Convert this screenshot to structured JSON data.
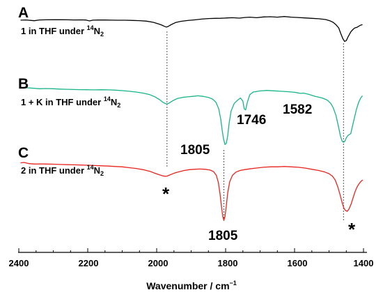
{
  "chart_data": {
    "type": "line",
    "title": "",
    "xlabel": "Wavenumber / cm",
    "xlabel_superscript": "−1",
    "ylabel": "",
    "xlim": [
      2400,
      1400
    ],
    "x_reversed": true,
    "x_ticks": [
      "2400",
      "2200",
      "2000",
      "1800",
      "1600",
      "1400"
    ],
    "grid": false,
    "legend": "none",
    "series": [
      {
        "panel": "A",
        "label_main": "1 in THF under ",
        "label_isotope": "14",
        "label_element": "N",
        "label_subscript": "2",
        "color": "#000000",
        "x": [
          2395,
          2380,
          2355,
          2340,
          2320,
          2300,
          2280,
          2260,
          2240,
          2220,
          2205,
          2195,
          2185,
          2170,
          2150,
          2130,
          2110,
          2090,
          2070,
          2050,
          2030,
          2010,
          1995,
          1985,
          1978,
          1972,
          1968,
          1962,
          1955,
          1945,
          1930,
          1910,
          1890,
          1870,
          1850,
          1830,
          1815,
          1805,
          1795,
          1780,
          1760,
          1745,
          1730,
          1710,
          1690,
          1670,
          1650,
          1630,
          1610,
          1590,
          1570,
          1550,
          1530,
          1510,
          1498,
          1488,
          1480,
          1472,
          1466,
          1460,
          1455,
          1450,
          1445,
          1440,
          1436,
          1430,
          1425,
          1420,
          1414,
          1408,
          1403
        ],
        "y": [
          0.985,
          0.99,
          0.97,
          0.99,
          0.993,
          0.995,
          0.994,
          0.993,
          0.99,
          0.992,
          0.988,
          0.965,
          0.985,
          0.988,
          0.987,
          0.985,
          0.983,
          0.982,
          0.978,
          0.972,
          0.96,
          0.93,
          0.89,
          0.86,
          0.83,
          0.81,
          0.82,
          0.85,
          0.885,
          0.925,
          0.955,
          0.975,
          0.992,
          1.01,
          1.025,
          1.03,
          1.032,
          1.035,
          1.04,
          1.045,
          1.035,
          1.05,
          1.06,
          1.045,
          1.065,
          1.07,
          1.06,
          1.075,
          1.06,
          1.05,
          1.04,
          1.03,
          1.02,
          1.0,
          0.97,
          0.93,
          0.87,
          0.79,
          0.65,
          0.52,
          0.45,
          0.47,
          0.56,
          0.64,
          0.7,
          0.755,
          0.79,
          0.8,
          0.83,
          0.86,
          0.87
        ]
      },
      {
        "panel": "B",
        "label_main": "1 + K in THF under ",
        "label_isotope": "14",
        "label_element": "N",
        "label_subscript": "2",
        "color": "#19b48a",
        "x": [
          2395,
          2380,
          2360,
          2340,
          2320,
          2300,
          2280,
          2260,
          2240,
          2220,
          2200,
          2180,
          2160,
          2140,
          2120,
          2100,
          2080,
          2060,
          2040,
          2020,
          2005,
          1992,
          1982,
          1975,
          1970,
          1965,
          1958,
          1950,
          1940,
          1925,
          1910,
          1895,
          1880,
          1865,
          1850,
          1838,
          1828,
          1820,
          1814,
          1810,
          1806,
          1802,
          1798,
          1794,
          1790,
          1784,
          1775,
          1765,
          1757,
          1750,
          1746,
          1742,
          1737,
          1730,
          1720,
          1700,
          1680,
          1660,
          1640,
          1620,
          1600,
          1590,
          1582,
          1575,
          1560,
          1540,
          1520,
          1505,
          1495,
          1488,
          1480,
          1473,
          1467,
          1462,
          1458,
          1454,
          1450,
          1446,
          1442,
          1437,
          1432,
          1426,
          1420,
          1414,
          1408,
          1403
        ],
        "y": [
          0.995,
          0.995,
          0.99,
          0.985,
          0.987,
          0.985,
          0.982,
          0.98,
          0.978,
          0.977,
          0.976,
          0.975,
          0.976,
          0.975,
          0.972,
          0.968,
          0.962,
          0.955,
          0.945,
          0.93,
          0.91,
          0.885,
          0.86,
          0.848,
          0.845,
          0.85,
          0.865,
          0.88,
          0.895,
          0.905,
          0.91,
          0.915,
          0.92,
          0.915,
          0.905,
          0.89,
          0.86,
          0.8,
          0.7,
          0.6,
          0.52,
          0.47,
          0.48,
          0.55,
          0.66,
          0.78,
          0.85,
          0.88,
          0.9,
          0.87,
          0.8,
          0.79,
          0.86,
          0.93,
          0.955,
          0.965,
          0.97,
          0.966,
          0.962,
          0.958,
          0.952,
          0.947,
          0.942,
          0.945,
          0.935,
          0.915,
          0.9,
          0.88,
          0.85,
          0.81,
          0.74,
          0.64,
          0.55,
          0.5,
          0.49,
          0.5,
          0.53,
          0.55,
          0.56,
          0.57,
          0.64,
          0.72,
          0.8,
          0.86,
          0.9,
          0.92
        ]
      },
      {
        "panel": "C",
        "label_main": "2 in THF under ",
        "label_isotope": "14",
        "label_element": "N",
        "label_subscript": "2",
        "color": "#e8241c",
        "x": [
          2395,
          2385,
          2370,
          2355,
          2340,
          2320,
          2300,
          2280,
          2260,
          2240,
          2220,
          2200,
          2180,
          2160,
          2140,
          2120,
          2100,
          2080,
          2060,
          2040,
          2020,
          2005,
          1992,
          1982,
          1975,
          1970,
          1964,
          1956,
          1946,
          1934,
          1920,
          1905,
          1890,
          1875,
          1860,
          1845,
          1835,
          1827,
          1821,
          1816,
          1812,
          1808,
          1805,
          1802,
          1798,
          1794,
          1788,
          1780,
          1770,
          1758,
          1745,
          1730,
          1710,
          1690,
          1670,
          1650,
          1630,
          1610,
          1590,
          1570,
          1550,
          1530,
          1512,
          1500,
          1490,
          1482,
          1475,
          1468,
          1462,
          1457,
          1452,
          1447,
          1442,
          1436,
          1430,
          1424,
          1418,
          1412,
          1406,
          1402
        ],
        "y": [
          0.995,
          1.0,
          0.985,
          0.98,
          0.982,
          0.98,
          0.978,
          0.975,
          0.972,
          0.97,
          0.968,
          0.965,
          0.962,
          0.958,
          0.955,
          0.95,
          0.945,
          0.935,
          0.925,
          0.91,
          0.89,
          0.865,
          0.845,
          0.832,
          0.828,
          0.83,
          0.84,
          0.855,
          0.87,
          0.885,
          0.9,
          0.91,
          0.915,
          0.918,
          0.915,
          0.905,
          0.885,
          0.84,
          0.75,
          0.6,
          0.45,
          0.32,
          0.28,
          0.32,
          0.46,
          0.62,
          0.76,
          0.84,
          0.88,
          0.9,
          0.91,
          0.92,
          0.93,
          0.94,
          0.945,
          0.945,
          0.95,
          0.945,
          0.94,
          0.93,
          0.915,
          0.9,
          0.88,
          0.86,
          0.83,
          0.78,
          0.7,
          0.6,
          0.5,
          0.43,
          0.4,
          0.39,
          0.42,
          0.48,
          0.56,
          0.64,
          0.7,
          0.74,
          0.77,
          0.78
        ]
      }
    ],
    "reference_lines_x": [
      1970,
      1805,
      1458
    ],
    "peak_labels": [
      {
        "text": "1805",
        "x": 1805,
        "panel": "B"
      },
      {
        "text": "1746",
        "x": 1746,
        "panel": "B"
      },
      {
        "text": "1582",
        "x": 1582,
        "panel": "B"
      },
      {
        "text": "1805",
        "x": 1805,
        "panel": "C"
      }
    ],
    "markers": [
      {
        "text": "*",
        "x": 1970,
        "panel": "C"
      },
      {
        "text": "*",
        "x": 1440,
        "panel": "C"
      }
    ]
  }
}
